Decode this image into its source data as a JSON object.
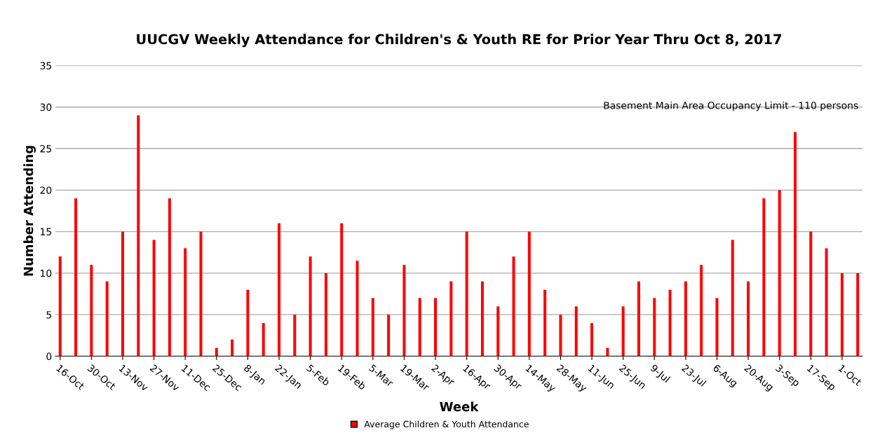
{
  "chart_data": {
    "type": "bar",
    "title": "UUCGV Weekly Attendance for Children's & Youth RE for Prior Year Thru Oct 8, 2017",
    "xlabel": "Week",
    "ylabel": "Number Attending",
    "categories": [
      "16-Oct",
      null,
      "30-Oct",
      null,
      "13-Nov",
      null,
      "27-Nov",
      null,
      "11-Dec",
      null,
      "25-Dec",
      null,
      "8-Jan",
      null,
      "22-Jan",
      null,
      "5-Feb",
      null,
      "19-Feb",
      null,
      "5-Mar",
      null,
      "19-Mar",
      null,
      "2-Apr",
      null,
      "16-Apr",
      null,
      "30-Apr",
      null,
      "14-May",
      null,
      "28-May",
      null,
      "11-Jun",
      null,
      "25-Jun",
      null,
      "9-Jul",
      null,
      "23-Jul",
      null,
      "6-Aug",
      null,
      "20-Aug",
      null,
      "3-Sep",
      null,
      "17-Sep",
      null,
      "1-Oct",
      null
    ],
    "series": [
      {
        "name": "Average Children & Youth Attendance",
        "color": "#ff0000",
        "values": [
          12,
          19,
          11,
          9,
          15,
          29,
          14,
          19,
          13,
          15,
          1,
          2,
          8,
          4,
          16,
          5,
          12,
          10,
          16,
          11.5,
          7,
          5,
          11,
          7,
          7,
          9,
          15,
          9,
          6,
          12,
          15,
          8,
          5,
          6,
          4,
          1,
          6,
          9,
          7,
          8,
          9,
          11,
          7,
          14,
          9,
          19,
          20,
          27,
          15,
          13,
          10,
          10
        ]
      }
    ],
    "ylim": [
      0,
      35
    ],
    "yticks": [
      0,
      5,
      10,
      15,
      20,
      25,
      30,
      35
    ],
    "grid": "y",
    "legend": "bottom",
    "annotations": [
      "Basement Main Area Occupancy Limit - 110 persons"
    ]
  }
}
